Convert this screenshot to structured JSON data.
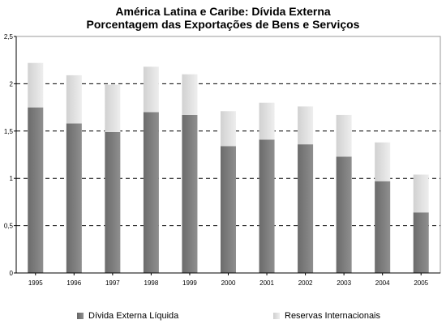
{
  "chart_data": {
    "type": "bar",
    "stacked": true,
    "title": "América Latina e Caribe: Dívida Externa",
    "subtitle": "Porcentagem das Exportações de Bens e Serviços",
    "categories": [
      "1995",
      "1996",
      "1997",
      "1998",
      "1999",
      "2000",
      "2001",
      "2002",
      "2003",
      "2004",
      "2005"
    ],
    "series": [
      {
        "name": "Dívida Externa Líquida",
        "values": [
          1.75,
          1.58,
          1.49,
          1.7,
          1.67,
          1.34,
          1.41,
          1.36,
          1.23,
          0.97,
          0.64
        ],
        "color": "#7a7a7a"
      },
      {
        "name": "Reservas Internacionais",
        "values": [
          0.47,
          0.51,
          0.5,
          0.48,
          0.43,
          0.37,
          0.39,
          0.4,
          0.44,
          0.41,
          0.4
        ],
        "color": "#d9d9d9"
      }
    ],
    "y_ticks": [
      "0",
      "0,5",
      "1",
      "1,5",
      "2",
      "2,5"
    ],
    "y_tick_values": [
      0,
      0.5,
      1,
      1.5,
      2,
      2.5
    ],
    "ylim": [
      0,
      2.5
    ],
    "grid": true,
    "legend_position": "bottom"
  }
}
